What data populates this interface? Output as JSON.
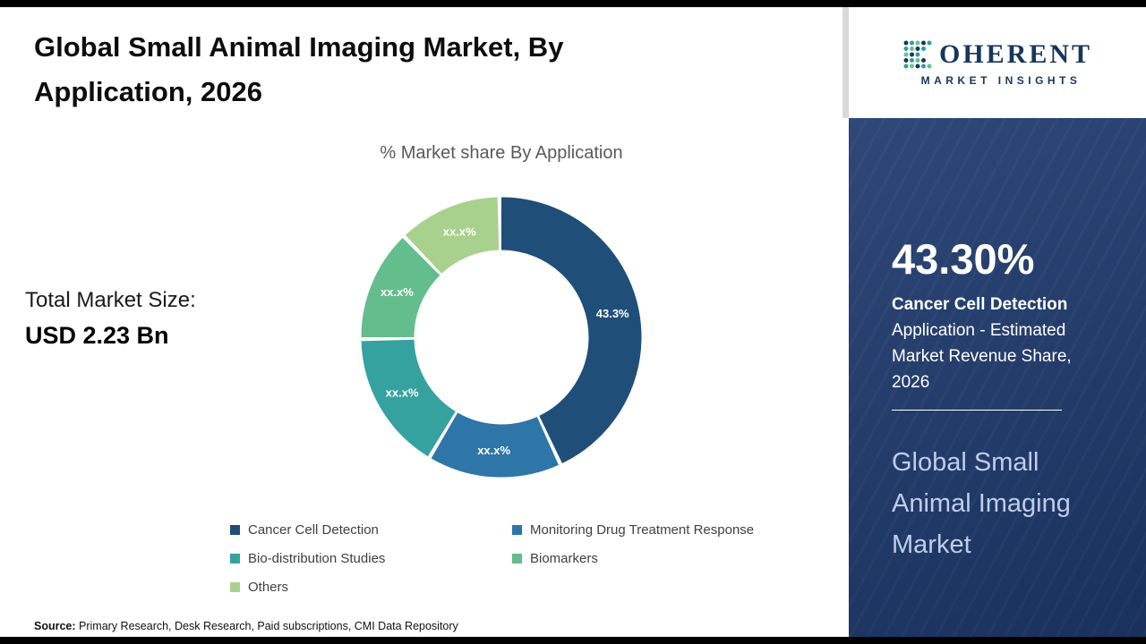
{
  "page": {
    "background": "#ffffff",
    "border_bar_color": "#000000"
  },
  "header": {
    "title": "Global Small Animal Imaging Market, By Application, 2026"
  },
  "logo": {
    "initial": "C",
    "rest": "OHERENT",
    "tagline": "MARKET INSIGHTS",
    "color": "#17365d"
  },
  "market": {
    "label": "Total Market Size:",
    "value": "USD 2.23 Bn"
  },
  "chart_data": {
    "type": "pie",
    "donut": true,
    "title": "% Market share By Application",
    "categories": [
      "Cancer Cell Detection",
      "Monitoring Drug Treatment Response",
      "Bio-distribution Studies",
      "Biomarkers",
      "Others"
    ],
    "values": [
      43.3,
      15.5,
      16.2,
      13.0,
      12.0
    ],
    "labels": [
      "43.3%",
      "xx.x%",
      "xx.x%",
      "xx.x%",
      "xx.x%"
    ],
    "colors": [
      "#1f4e79",
      "#2e75a8",
      "#35a2a0",
      "#63bd8d",
      "#a9d18e"
    ],
    "legend_position": "bottom"
  },
  "sidebar": {
    "background": "#1e3a6e",
    "stat_value": "43.30%",
    "stat_desc_bold": "Cancer Cell Detection",
    "stat_desc_rest": "Application - Estimated Market Revenue Share, 2026",
    "market_name": "Global Small Animal Imaging Market",
    "market_name_color": "#bfcdea"
  },
  "source": {
    "prefix": "Source:",
    "text": "Primary Research, Desk Research, Paid subscriptions, CMI Data Repository"
  }
}
